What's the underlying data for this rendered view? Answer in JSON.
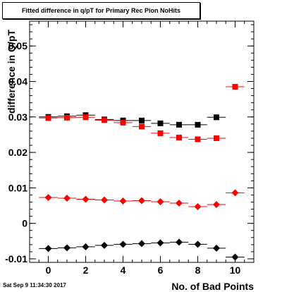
{
  "chart_data": {
    "type": "scatter",
    "title": "Fitted difference in q/pT for Primary Rec Pion NoHits",
    "xlabel": "No. of Bad Points",
    "ylabel": "difference in Q/pT",
    "xlim": [
      -1,
      11
    ],
    "ylim": [
      -0.011,
      0.057
    ],
    "grid": false,
    "xticks": [
      0,
      2,
      4,
      6,
      8,
      10
    ],
    "yticks": [
      -0.01,
      0,
      0.01,
      0.02,
      0.03,
      0.04,
      0.05
    ],
    "ytick_labels": [
      "-0.01",
      "0",
      "0.01",
      "0.02",
      "0.03",
      "0.04",
      "0.05"
    ],
    "series": [
      {
        "marker": "square",
        "color": "#000000",
        "x": [
          0,
          1,
          2,
          3,
          4,
          5,
          6,
          7,
          8,
          9
        ],
        "y": [
          0.03,
          0.0302,
          0.0305,
          0.0293,
          0.029,
          0.029,
          0.0282,
          0.0278,
          0.0278,
          0.0299
        ]
      },
      {
        "marker": "square",
        "color": "#ff0000",
        "x": [
          0,
          1,
          2,
          3,
          4,
          5,
          6,
          7,
          8,
          9,
          10
        ],
        "y": [
          0.0297,
          0.0298,
          0.0299,
          0.0291,
          0.0284,
          0.0273,
          0.0254,
          0.0242,
          0.0237,
          0.024,
          0.0385
        ]
      },
      {
        "marker": "diamond",
        "color": "#ff0000",
        "x": [
          0,
          1,
          2,
          3,
          4,
          5,
          6,
          7,
          8,
          9,
          10
        ],
        "y": [
          0.0073,
          0.0071,
          0.0068,
          0.0066,
          0.0063,
          0.0064,
          0.0061,
          0.0057,
          0.0047,
          0.0053,
          0.0086
        ]
      },
      {
        "marker": "diamond",
        "color": "#000000",
        "x": [
          0,
          1,
          2,
          3,
          4,
          5,
          6,
          7,
          8,
          9,
          10
        ],
        "y": [
          -0.0071,
          -0.0069,
          -0.0066,
          -0.0062,
          -0.0059,
          -0.0057,
          -0.0055,
          -0.0053,
          -0.0059,
          -0.007,
          -0.0095
        ]
      }
    ]
  },
  "footer": {
    "timestamp": "Sat Sep  9 11:34:30 2017"
  }
}
